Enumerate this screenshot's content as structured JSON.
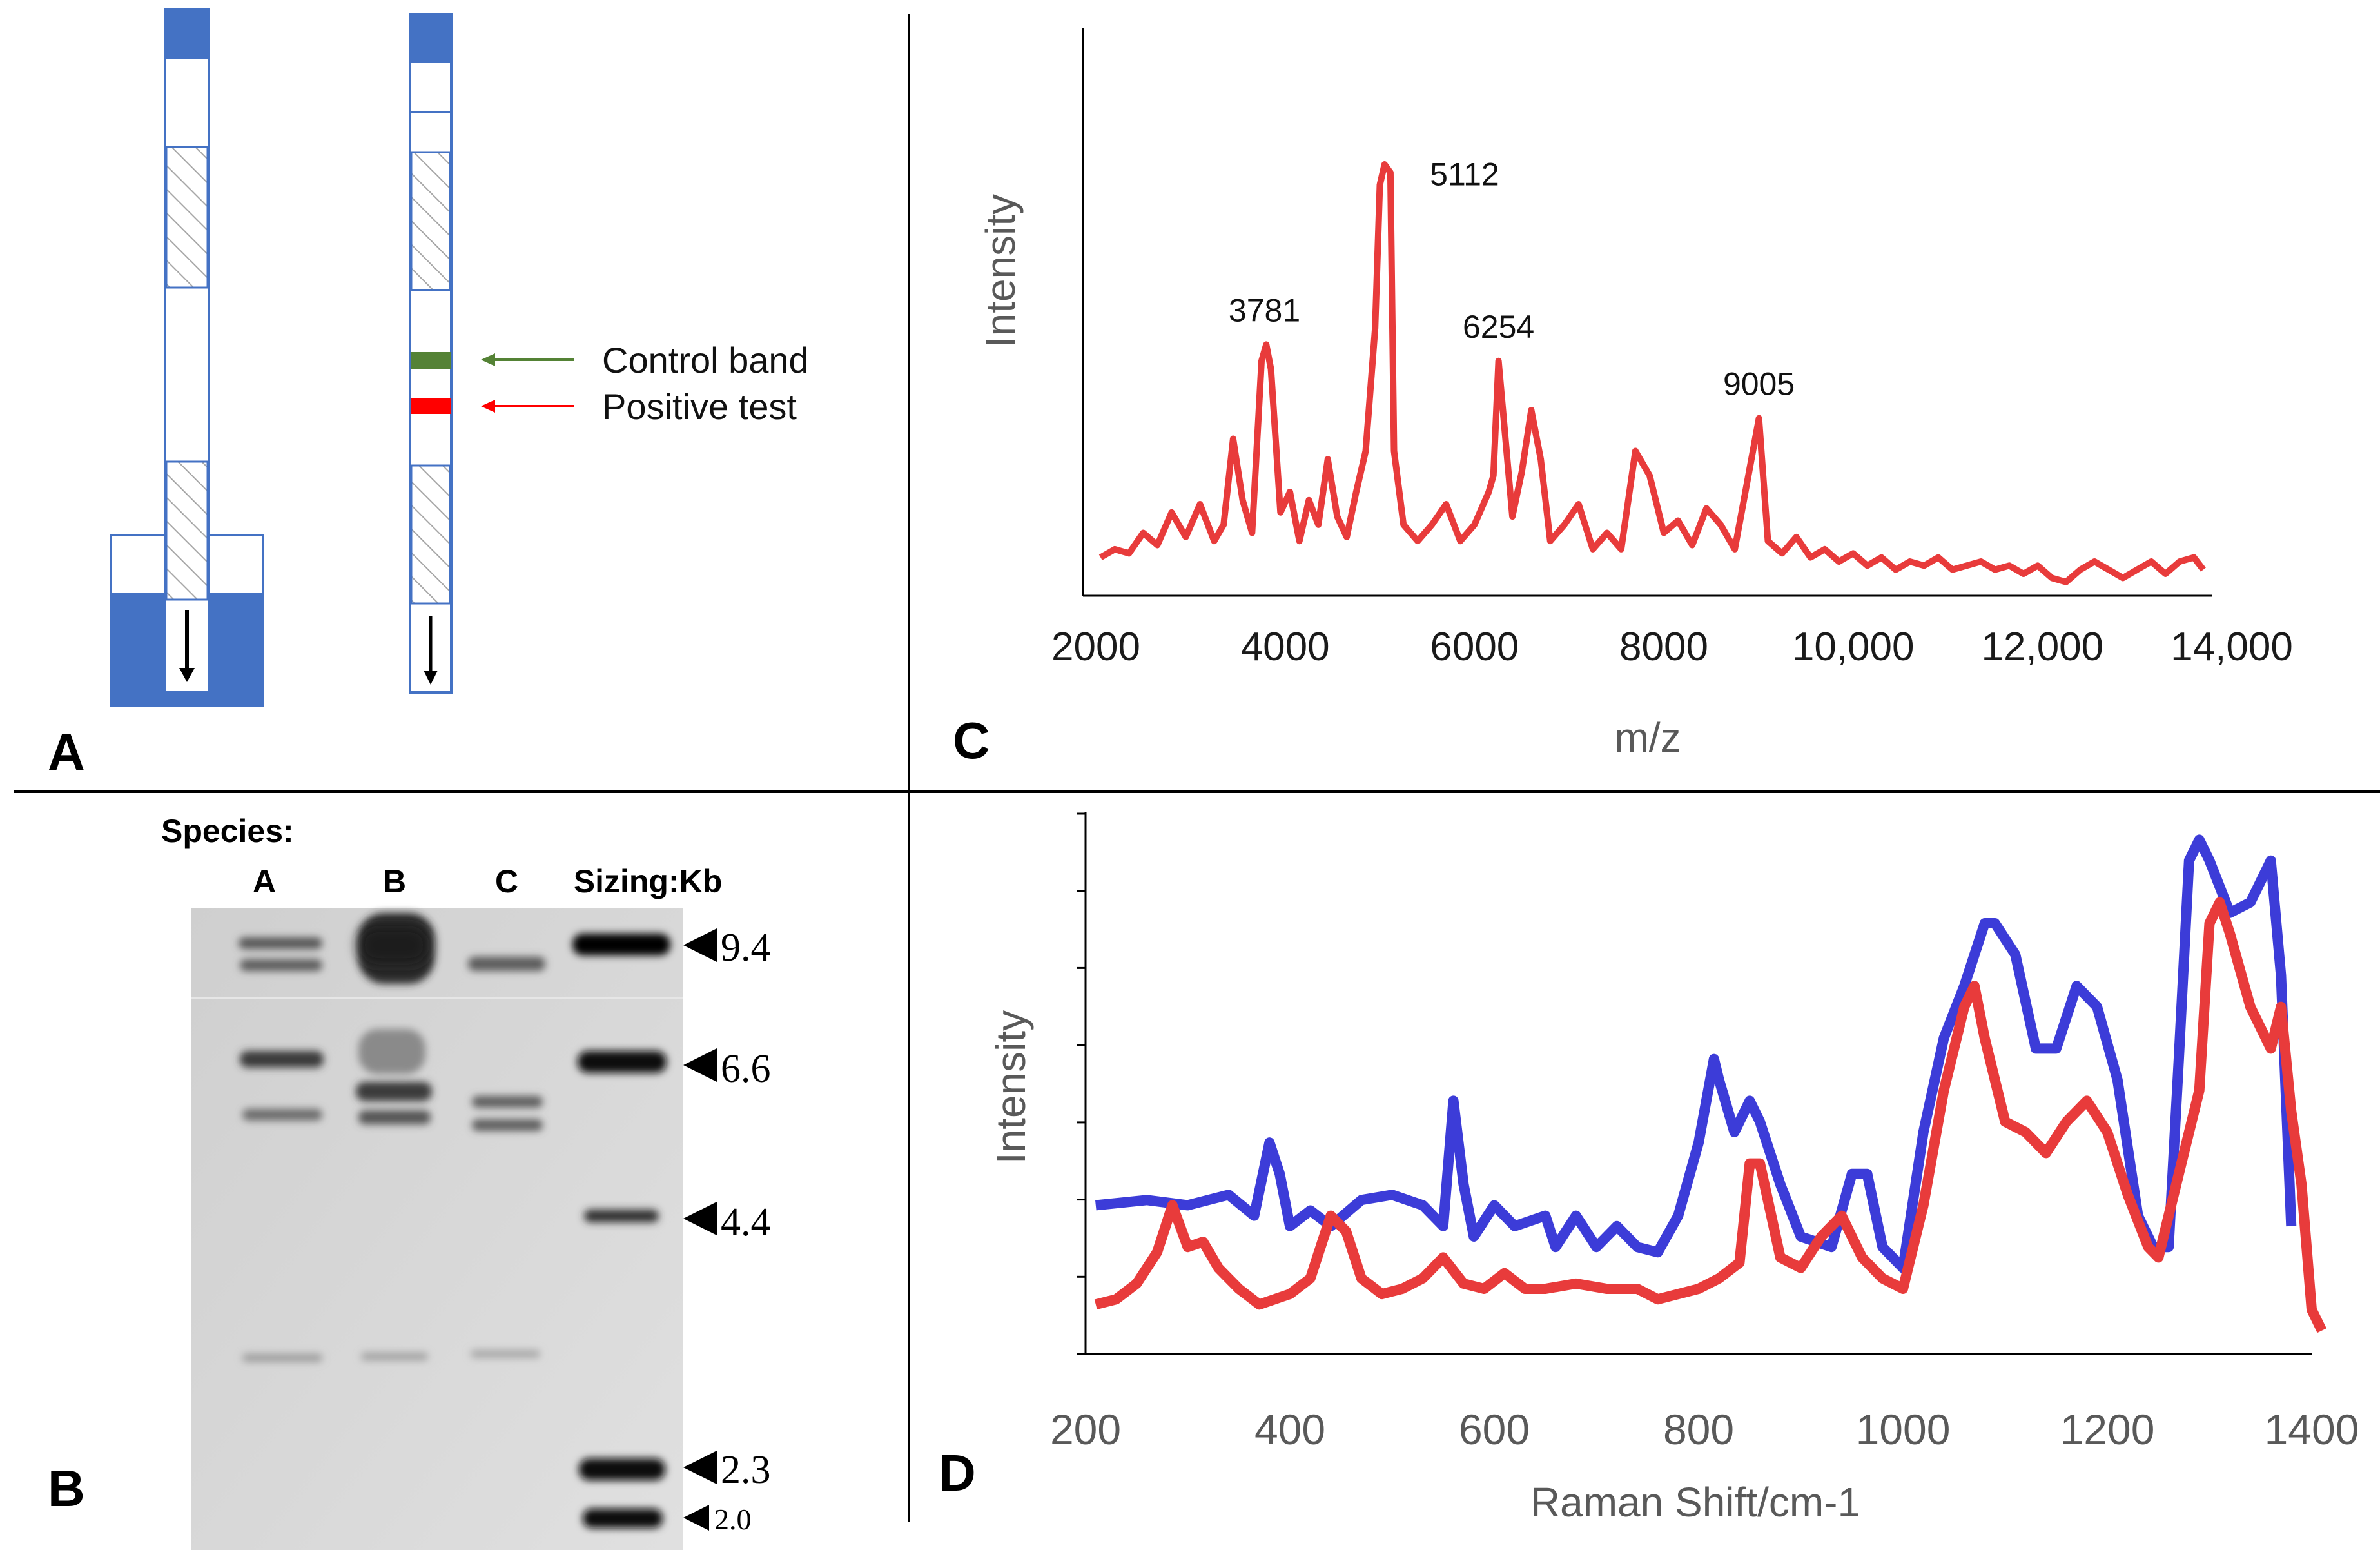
{
  "panels": {
    "a": "A",
    "b": "B",
    "c": "C",
    "d": "D"
  },
  "panel_a": {
    "control_band_label": "Control band",
    "positive_test_label": "Positive test",
    "colors": {
      "pad": "#4472c4",
      "control": "#548235",
      "test": "#ff0000",
      "arrow_control": "#548235",
      "arrow_test": "#ff0000"
    },
    "icons": [
      "down-arrow-icon",
      "left-arrow-icon"
    ]
  },
  "panel_b": {
    "species_label": "Species:",
    "lanes": [
      "A",
      "B",
      "C"
    ],
    "sizing_label": "Sizing:Kb",
    "markers": [
      "9.4",
      "6.6",
      "4.4",
      "2.3",
      "2.0"
    ]
  },
  "chart_data": [
    {
      "type": "line",
      "panel": "C",
      "title": "",
      "xlabel": "m/z",
      "ylabel": "Intensity",
      "xlim": [
        2000,
        14000
      ],
      "x_ticks": [
        "2000",
        "4000",
        "6000",
        "8000",
        "10,000",
        "12,000",
        "14,000"
      ],
      "peak_labels": [
        {
          "x": 3781,
          "label": "3781"
        },
        {
          "x": 5112,
          "label": "5112"
        },
        {
          "x": 6254,
          "label": "6254"
        },
        {
          "x": 9005,
          "label": "9005"
        }
      ],
      "series": [
        {
          "name": "spectrum",
          "color": "#e83b3b",
          "x": [
            2050,
            2200,
            2350,
            2500,
            2650,
            2800,
            2950,
            3100,
            3250,
            3350,
            3450,
            3550,
            3650,
            3750,
            3800,
            3850,
            3950,
            4050,
            4150,
            4250,
            4350,
            4450,
            4550,
            4650,
            4750,
            4850,
            4950,
            5000,
            5050,
            5112,
            5150,
            5250,
            5400,
            5550,
            5700,
            5850,
            6000,
            6150,
            6200,
            6254,
            6300,
            6400,
            6500,
            6600,
            6700,
            6800,
            6950,
            7100,
            7250,
            7400,
            7550,
            7700,
            7850,
            8000,
            8150,
            8300,
            8450,
            8600,
            8750,
            9005,
            9100,
            9250,
            9400,
            9550,
            9700,
            9850,
            10000,
            10150,
            10300,
            10450,
            10600,
            10750,
            10900,
            11050,
            11200,
            11350,
            11500,
            11650,
            11800,
            11950,
            12100,
            12250,
            12400,
            12550,
            12700,
            12850,
            13000,
            13150,
            13300,
            13450,
            13600,
            13700
          ],
          "y": [
            0.04,
            0.06,
            0.05,
            0.1,
            0.07,
            0.15,
            0.09,
            0.17,
            0.08,
            0.12,
            0.33,
            0.18,
            0.1,
            0.52,
            0.56,
            0.5,
            0.15,
            0.2,
            0.08,
            0.18,
            0.12,
            0.28,
            0.14,
            0.09,
            0.2,
            0.3,
            0.6,
            0.95,
            1.0,
            0.98,
            0.3,
            0.12,
            0.08,
            0.12,
            0.17,
            0.08,
            0.12,
            0.2,
            0.24,
            0.52,
            0.4,
            0.14,
            0.25,
            0.4,
            0.28,
            0.08,
            0.12,
            0.17,
            0.06,
            0.1,
            0.06,
            0.3,
            0.24,
            0.1,
            0.13,
            0.07,
            0.16,
            0.12,
            0.06,
            0.38,
            0.08,
            0.05,
            0.09,
            0.04,
            0.06,
            0.03,
            0.05,
            0.02,
            0.04,
            0.01,
            0.03,
            0.02,
            0.04,
            0.01,
            0.02,
            0.03,
            0.01,
            0.02,
            0.0,
            0.02,
            -0.01,
            -0.02,
            0.01,
            0.03,
            0.01,
            -0.01,
            0.01,
            0.03,
            0.0,
            0.03,
            0.04,
            0.01
          ]
        }
      ]
    },
    {
      "type": "line",
      "panel": "D",
      "title": "",
      "xlabel": "Raman Shift/cm-1",
      "ylabel": "Intensity",
      "xlim": [
        200,
        1400
      ],
      "x_ticks": [
        "200",
        "400",
        "600",
        "800",
        "1000",
        "1200",
        "1400"
      ],
      "series": [
        {
          "name": "blue spectrum",
          "color": "#3c3cd8",
          "x": [
            210,
            260,
            300,
            340,
            365,
            380,
            390,
            400,
            420,
            440,
            470,
            500,
            530,
            550,
            560,
            570,
            580,
            600,
            620,
            650,
            660,
            680,
            700,
            720,
            740,
            760,
            780,
            800,
            815,
            820,
            835,
            850,
            860,
            880,
            900,
            930,
            950,
            965,
            980,
            1000,
            1020,
            1040,
            1060,
            1080,
            1090,
            1110,
            1130,
            1150,
            1170,
            1190,
            1210,
            1230,
            1245,
            1260,
            1270,
            1280,
            1290,
            1300,
            1320,
            1340,
            1350,
            1360,
            1370,
            1380
          ],
          "y": [
            0.26,
            0.27,
            0.26,
            0.28,
            0.24,
            0.38,
            0.32,
            0.22,
            0.25,
            0.22,
            0.27,
            0.28,
            0.26,
            0.22,
            0.46,
            0.3,
            0.2,
            0.26,
            0.22,
            0.24,
            0.18,
            0.24,
            0.18,
            0.22,
            0.18,
            0.17,
            0.24,
            0.38,
            0.54,
            0.5,
            0.4,
            0.46,
            0.42,
            0.3,
            0.2,
            0.18,
            0.32,
            0.32,
            0.18,
            0.14,
            0.4,
            0.58,
            0.68,
            0.8,
            0.8,
            0.74,
            0.56,
            0.56,
            0.68,
            0.64,
            0.5,
            0.24,
            0.18,
            0.18,
            0.54,
            0.92,
            0.96,
            0.92,
            0.82,
            0.84,
            0.88,
            0.92,
            0.7,
            0.22
          ]
        },
        {
          "name": "red spectrum",
          "color": "#e83b3b",
          "x": [
            210,
            230,
            250,
            270,
            285,
            300,
            315,
            330,
            350,
            370,
            400,
            420,
            440,
            455,
            470,
            490,
            510,
            530,
            550,
            570,
            590,
            610,
            630,
            650,
            680,
            710,
            740,
            760,
            780,
            800,
            820,
            840,
            850,
            860,
            880,
            900,
            920,
            940,
            960,
            980,
            1000,
            1020,
            1040,
            1060,
            1070,
            1080,
            1100,
            1120,
            1140,
            1160,
            1180,
            1200,
            1220,
            1240,
            1250,
            1270,
            1290,
            1300,
            1310,
            1320,
            1340,
            1360,
            1370,
            1380,
            1390,
            1400,
            1410
          ],
          "y": [
            0.07,
            0.08,
            0.11,
            0.17,
            0.26,
            0.18,
            0.19,
            0.14,
            0.1,
            0.07,
            0.09,
            0.12,
            0.24,
            0.21,
            0.12,
            0.09,
            0.1,
            0.12,
            0.16,
            0.11,
            0.1,
            0.13,
            0.1,
            0.1,
            0.11,
            0.1,
            0.1,
            0.08,
            0.09,
            0.1,
            0.12,
            0.15,
            0.34,
            0.34,
            0.16,
            0.14,
            0.2,
            0.24,
            0.16,
            0.12,
            0.1,
            0.26,
            0.48,
            0.64,
            0.68,
            0.58,
            0.42,
            0.4,
            0.36,
            0.42,
            0.46,
            0.4,
            0.28,
            0.18,
            0.16,
            0.32,
            0.48,
            0.8,
            0.84,
            0.78,
            0.64,
            0.56,
            0.64,
            0.44,
            0.3,
            0.06,
            0.02
          ]
        }
      ]
    }
  ]
}
